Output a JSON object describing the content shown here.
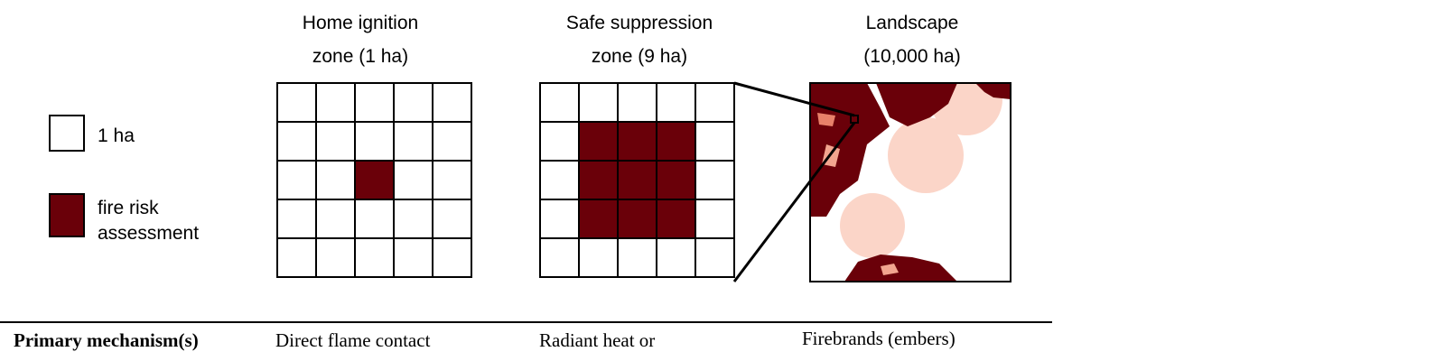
{
  "legend": {
    "items": [
      {
        "lines": [
          "1 ha"
        ]
      },
      {
        "lines": [
          "fire risk",
          "assessment"
        ]
      }
    ]
  },
  "panels": [
    {
      "title": [
        "Home ignition",
        "zone (1 ha)"
      ]
    },
    {
      "title": [
        "Safe suppression",
        "zone (9 ha)"
      ]
    },
    {
      "title": [
        "Landscape",
        "(10,000 ha)"
      ]
    }
  ],
  "table": {
    "rows": [
      [
        "Primary mechanism(s)",
        "Direct flame contact",
        "Radiant heat or",
        "Firebrands (embers)"
      ]
    ]
  }
}
